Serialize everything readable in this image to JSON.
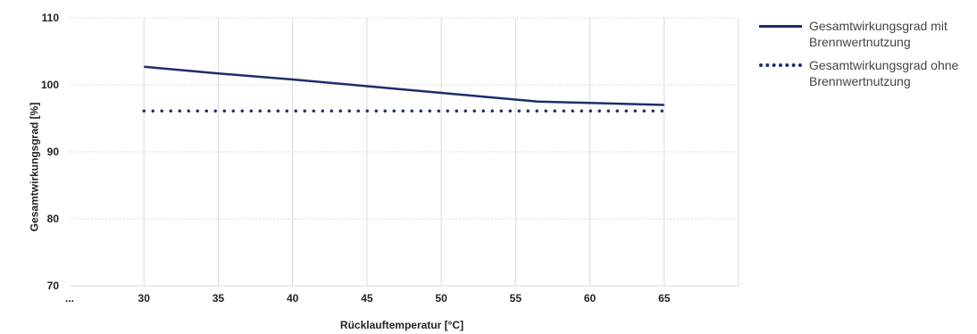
{
  "chart_data": {
    "type": "line",
    "xlabel": "Rücklauftemperatur [°C]",
    "ylabel": "Gesamtwirkungsgrad [%]",
    "xlim": [
      25,
      70
    ],
    "ylim": [
      70,
      110
    ],
    "x_ticks": [
      "...",
      "30",
      "35",
      "40",
      "45",
      "50",
      "55",
      "60",
      "65"
    ],
    "y_ticks": [
      70,
      80,
      90,
      100,
      110
    ],
    "grid": true,
    "legend_position": "right",
    "series": [
      {
        "name": "Gesamtwirkungsgrad mit Brennwertnutzung",
        "style": "solid",
        "x": [
          30,
          35,
          40,
          45,
          50,
          55,
          56.5,
          60,
          65
        ],
        "y": [
          102.7,
          101.7,
          100.8,
          99.8,
          98.8,
          97.8,
          97.5,
          97.3,
          97.0
        ]
      },
      {
        "name": "Gesamtwirkungsgrad ohne Brennwertnutzung",
        "style": "dotted",
        "x": [
          30,
          65
        ],
        "y": [
          96.1,
          96.1
        ]
      }
    ],
    "color": "#1b2d6b"
  }
}
